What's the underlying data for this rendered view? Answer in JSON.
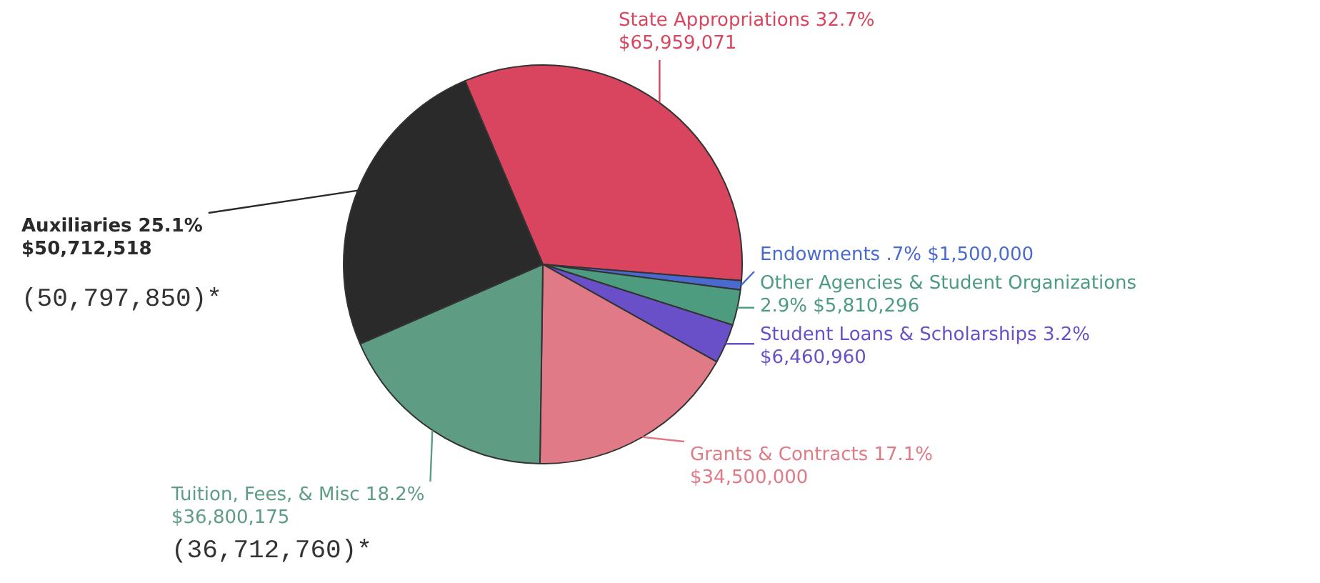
{
  "chart_data": {
    "type": "pie",
    "categories": [
      "State Appropriations",
      "Endowments",
      "Other Agencies & Student Organizations",
      "Student Loans & Scholarships",
      "Grants & Contracts",
      "Tuition, Fees, & Misc",
      "Auxiliaries"
    ],
    "values": [
      65959071,
      1500000,
      5810296,
      6460960,
      34500000,
      36800175,
      50712518
    ],
    "value_labels": [
      "32.7% $65,959,071",
      ".7% $1,500,000",
      "2.9% $5,810,296",
      "3.2% $6,460,960",
      "17.1% $34,500,000",
      "18.2% $36,800,175",
      "25.1% $50,712,518"
    ],
    "colors": [
      "#d9455f",
      "#4a6ad0",
      "#4d9c80",
      "#6a50c8",
      "#e07a86",
      "#5e9c84",
      "#2a2a2a"
    ],
    "annotations": [
      "(50,797,850)*",
      "(36,712,760)*"
    ],
    "legend": false
  }
}
